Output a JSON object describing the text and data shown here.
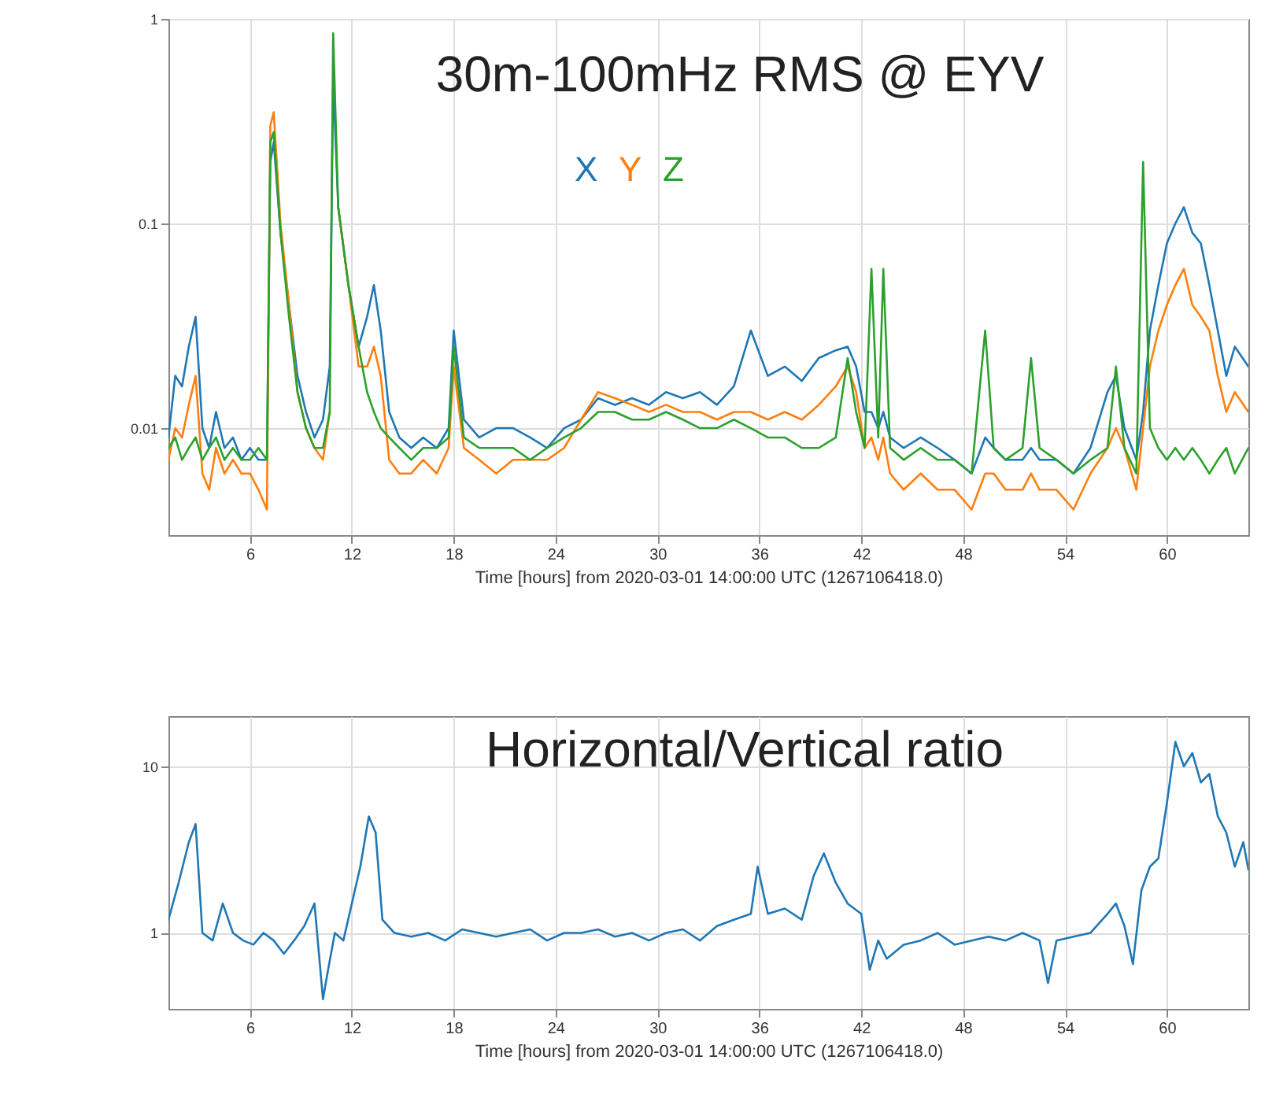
{
  "chart_data": [
    {
      "type": "line",
      "title": "30m-100mHz RMS @ EYV",
      "xlabel": "Time [hours] from 2020-03-01 14:00:00 UTC (1267106418.0)",
      "log": "y",
      "grid": true,
      "xlim": [
        1.2,
        64.8
      ],
      "ylim": [
        0.003,
        1
      ],
      "xticks": [
        6,
        12,
        18,
        24,
        30,
        36,
        42,
        48,
        54,
        60
      ],
      "yticks": [
        0.01,
        0.1,
        1
      ],
      "x": [
        1.2,
        1.6,
        2.0,
        2.4,
        2.8,
        3.2,
        3.6,
        4.0,
        4.5,
        5,
        5.5,
        6,
        6.5,
        7,
        7.2,
        7.4,
        7.8,
        8.3,
        8.8,
        9.3,
        9.8,
        10.3,
        10.7,
        10.9,
        11.2,
        11.8,
        12.4,
        12.9,
        13.3,
        13.7,
        14.2,
        14.8,
        15.5,
        16.2,
        17,
        17.7,
        18,
        18.6,
        19.5,
        20.5,
        21.5,
        22.5,
        23.5,
        24.5,
        25.5,
        26.5,
        27.5,
        28.5,
        29.5,
        30.5,
        31.5,
        32.5,
        33.5,
        34.5,
        35.5,
        36.5,
        37.5,
        38.5,
        39.5,
        40.5,
        41.2,
        41.7,
        42.2,
        42.6,
        43,
        43.3,
        43.7,
        44.5,
        45.5,
        46.5,
        47.5,
        48.5,
        49.3,
        49.8,
        50.5,
        51.5,
        52,
        52.5,
        53.5,
        54.5,
        55.5,
        56.5,
        57,
        57.5,
        58.2,
        58.6,
        59,
        59.5,
        60,
        60.5,
        61,
        61.5,
        62,
        62.5,
        63,
        63.5,
        64,
        64.8
      ],
      "series": [
        {
          "name": "X",
          "color": "#1f77b4",
          "values": [
            0.009,
            0.018,
            0.016,
            0.025,
            0.035,
            0.01,
            0.008,
            0.012,
            0.008,
            0.009,
            0.007,
            0.008,
            0.007,
            0.007,
            0.2,
            0.25,
            0.09,
            0.04,
            0.018,
            0.012,
            0.009,
            0.011,
            0.02,
            0.5,
            0.12,
            0.05,
            0.025,
            0.035,
            0.05,
            0.03,
            0.012,
            0.009,
            0.008,
            0.009,
            0.008,
            0.01,
            0.03,
            0.011,
            0.009,
            0.01,
            0.01,
            0.009,
            0.008,
            0.01,
            0.011,
            0.014,
            0.013,
            0.014,
            0.013,
            0.015,
            0.014,
            0.015,
            0.013,
            0.016,
            0.03,
            0.018,
            0.02,
            0.017,
            0.022,
            0.024,
            0.025,
            0.02,
            0.012,
            0.012,
            0.01,
            0.012,
            0.009,
            0.008,
            0.009,
            0.008,
            0.007,
            0.006,
            0.009,
            0.008,
            0.007,
            0.007,
            0.008,
            0.007,
            0.007,
            0.006,
            0.008,
            0.015,
            0.018,
            0.01,
            0.007,
            0.012,
            0.03,
            0.05,
            0.08,
            0.1,
            0.12,
            0.09,
            0.08,
            0.05,
            0.03,
            0.018,
            0.025,
            0.02
          ]
        },
        {
          "name": "Y",
          "color": "#ff7f0e",
          "values": [
            0.007,
            0.01,
            0.009,
            0.013,
            0.018,
            0.006,
            0.005,
            0.008,
            0.006,
            0.007,
            0.006,
            0.006,
            0.005,
            0.004,
            0.3,
            0.35,
            0.1,
            0.04,
            0.015,
            0.01,
            0.008,
            0.007,
            0.012,
            null,
            0.12,
            0.05,
            0.02,
            0.02,
            0.025,
            0.018,
            0.007,
            0.006,
            0.006,
            0.007,
            0.006,
            0.008,
            0.02,
            0.008,
            0.007,
            0.006,
            0.007,
            0.007,
            0.007,
            0.008,
            0.011,
            0.015,
            0.014,
            0.013,
            0.012,
            0.013,
            0.012,
            0.012,
            0.011,
            0.012,
            0.012,
            0.011,
            0.012,
            0.011,
            0.013,
            0.016,
            0.02,
            0.015,
            0.008,
            0.009,
            0.007,
            0.009,
            0.006,
            0.005,
            0.006,
            0.005,
            0.005,
            0.004,
            0.006,
            0.006,
            0.005,
            0.005,
            0.006,
            0.005,
            0.005,
            0.004,
            0.006,
            0.008,
            0.01,
            0.008,
            0.005,
            0.01,
            0.02,
            0.03,
            0.04,
            0.05,
            0.06,
            0.04,
            0.035,
            0.03,
            0.018,
            0.012,
            0.015,
            0.012
          ]
        },
        {
          "name": "Z",
          "color": "#2ca02c",
          "values": [
            0.008,
            0.009,
            0.007,
            0.008,
            0.009,
            0.007,
            0.008,
            0.009,
            0.007,
            0.008,
            0.007,
            0.007,
            0.008,
            0.007,
            0.25,
            0.28,
            0.09,
            0.035,
            0.015,
            0.01,
            0.008,
            0.008,
            0.012,
            0.85,
            0.12,
            0.05,
            0.025,
            0.015,
            0.012,
            0.01,
            0.009,
            0.008,
            0.007,
            0.008,
            0.008,
            0.009,
            0.025,
            0.009,
            0.008,
            0.008,
            0.008,
            0.007,
            0.008,
            0.009,
            0.01,
            0.012,
            0.012,
            0.011,
            0.011,
            0.012,
            0.011,
            0.01,
            0.01,
            0.011,
            0.01,
            0.009,
            0.009,
            0.008,
            0.008,
            0.009,
            0.022,
            0.012,
            0.008,
            0.06,
            0.009,
            0.06,
            0.008,
            0.007,
            0.008,
            0.007,
            0.007,
            0.006,
            0.03,
            0.008,
            0.007,
            0.008,
            0.022,
            0.008,
            0.007,
            0.006,
            0.007,
            0.008,
            0.02,
            0.008,
            0.006,
            0.2,
            0.01,
            0.008,
            0.007,
            0.008,
            0.007,
            0.008,
            0.007,
            0.006,
            0.007,
            0.008,
            0.006,
            0.008
          ]
        }
      ]
    },
    {
      "type": "line",
      "title": "Horizontal/Vertical ratio",
      "xlabel": "Time [hours] from 2020-03-01 14:00:00 UTC (1267106418.0)",
      "log": "y",
      "grid": true,
      "xlim": [
        1.2,
        64.8
      ],
      "ylim": [
        0.35,
        20
      ],
      "xticks": [
        6,
        12,
        18,
        24,
        30,
        36,
        42,
        48,
        54,
        60
      ],
      "yticks": [
        1,
        10
      ],
      "x": [
        1.2,
        1.8,
        2.4,
        2.8,
        3.2,
        3.8,
        4.4,
        5,
        5.6,
        6.2,
        6.8,
        7.4,
        8,
        8.6,
        9.2,
        9.8,
        10.3,
        10.6,
        11,
        11.5,
        12,
        12.5,
        13,
        13.4,
        13.8,
        14.5,
        15.5,
        16.5,
        17.5,
        18.5,
        19.5,
        20.5,
        21.5,
        22.5,
        23.5,
        24.5,
        25.5,
        26.5,
        27.5,
        28.5,
        29.5,
        30.5,
        31.5,
        32.5,
        33.5,
        34.5,
        35.5,
        35.9,
        36.5,
        37.5,
        38.5,
        39.2,
        39.8,
        40.5,
        41.2,
        42,
        42.5,
        43,
        43.5,
        44.5,
        45.5,
        46.5,
        47.5,
        48.5,
        49.5,
        50.5,
        51.5,
        52.5,
        53,
        53.5,
        54.5,
        55.5,
        56.5,
        57,
        57.5,
        58,
        58.5,
        59,
        59.5,
        60,
        60.5,
        61,
        61.5,
        62,
        62.5,
        63,
        63.5,
        64,
        64.5,
        64.8
      ],
      "series": [
        {
          "color": "#1f77b4",
          "values": [
            1.2,
            2,
            3.5,
            4.5,
            1,
            0.9,
            1.5,
            1,
            0.9,
            0.85,
            1,
            0.9,
            0.75,
            0.9,
            1.1,
            1.5,
            0.4,
            0.6,
            1,
            0.9,
            1.5,
            2.5,
            5,
            4,
            1.2,
            1,
            0.95,
            1,
            0.9,
            1.05,
            1,
            0.95,
            1,
            1.05,
            0.9,
            1,
            1,
            1.05,
            0.95,
            1,
            0.9,
            1,
            1.05,
            0.9,
            1.1,
            1.2,
            1.3,
            2.5,
            1.3,
            1.4,
            1.2,
            2.2,
            3,
            2,
            1.5,
            1.3,
            0.6,
            0.9,
            0.7,
            0.85,
            0.9,
            1,
            0.85,
            0.9,
            0.95,
            0.9,
            1,
            0.9,
            0.5,
            0.9,
            0.95,
            1,
            1.3,
            1.5,
            1.1,
            0.65,
            1.8,
            2.5,
            2.8,
            6,
            14,
            10,
            12,
            8,
            9,
            5,
            4,
            2.5,
            3.5,
            2.4
          ]
        }
      ]
    }
  ]
}
